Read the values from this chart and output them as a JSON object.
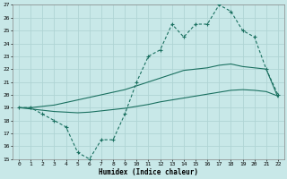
{
  "xlabel": "Humidex (Indice chaleur)",
  "bg_color": "#c8e8e8",
  "grid_color": "#afd4d4",
  "line_color": "#1a7060",
  "x_min": -0.5,
  "x_max": 22.5,
  "y_min": 15,
  "y_max": 27,
  "x_ticks": [
    0,
    1,
    2,
    3,
    4,
    5,
    6,
    7,
    8,
    9,
    10,
    11,
    12,
    13,
    14,
    15,
    16,
    17,
    18,
    19,
    20,
    21,
    22
  ],
  "y_ticks": [
    15,
    16,
    17,
    18,
    19,
    20,
    21,
    22,
    23,
    24,
    25,
    26,
    27
  ],
  "series_dotted_x": [
    0,
    1,
    2,
    3,
    4,
    5,
    6,
    7,
    8,
    9,
    10,
    11,
    12,
    13,
    14,
    15,
    16,
    17,
    18,
    19,
    20,
    21,
    22
  ],
  "series_dotted_y": [
    19,
    19,
    18.5,
    18,
    17.5,
    15.5,
    15,
    16.5,
    16.5,
    18.5,
    21,
    23,
    23.5,
    25.5,
    24.5,
    25.5,
    25.5,
    27,
    26.5,
    25,
    24.5,
    22,
    20
  ],
  "series_line1_x": [
    0,
    1,
    2,
    3,
    4,
    5,
    6,
    7,
    8,
    9,
    10,
    11,
    12,
    13,
    14,
    15,
    16,
    17,
    18,
    19,
    20,
    21,
    22
  ],
  "series_line1_y": [
    19,
    19,
    19.1,
    19.2,
    19.4,
    19.6,
    19.8,
    20.0,
    20.2,
    20.4,
    20.7,
    21.0,
    21.3,
    21.6,
    21.9,
    22.0,
    22.1,
    22.3,
    22.4,
    22.2,
    22.1,
    22.0,
    19.8
  ],
  "series_line2_x": [
    0,
    1,
    2,
    3,
    4,
    5,
    6,
    7,
    8,
    9,
    10,
    11,
    12,
    13,
    14,
    15,
    16,
    17,
    18,
    19,
    20,
    21,
    22
  ],
  "series_line2_y": [
    19,
    18.9,
    18.8,
    18.7,
    18.65,
    18.6,
    18.65,
    18.75,
    18.85,
    18.95,
    19.1,
    19.25,
    19.45,
    19.6,
    19.75,
    19.9,
    20.05,
    20.2,
    20.35,
    20.4,
    20.35,
    20.25,
    19.9
  ]
}
